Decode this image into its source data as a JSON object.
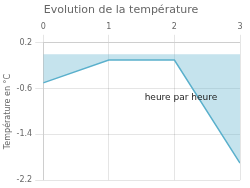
{
  "chart_data": {
    "type": "area",
    "title": "Evolution de la température",
    "xlabel": "heure par heure",
    "ylabel": "Température en °C",
    "x": [
      0,
      1,
      2,
      3
    ],
    "values": [
      -0.5,
      -0.1,
      -0.1,
      -1.9
    ],
    "color": "#5ab0cc",
    "xlim": [
      0,
      3
    ],
    "ylim": [
      -2.2,
      0.2
    ],
    "xticks": [
      0,
      1,
      2,
      3
    ],
    "yticks": [
      0.2,
      -0.6,
      -1.4,
      -2.2
    ],
    "grid": true
  }
}
